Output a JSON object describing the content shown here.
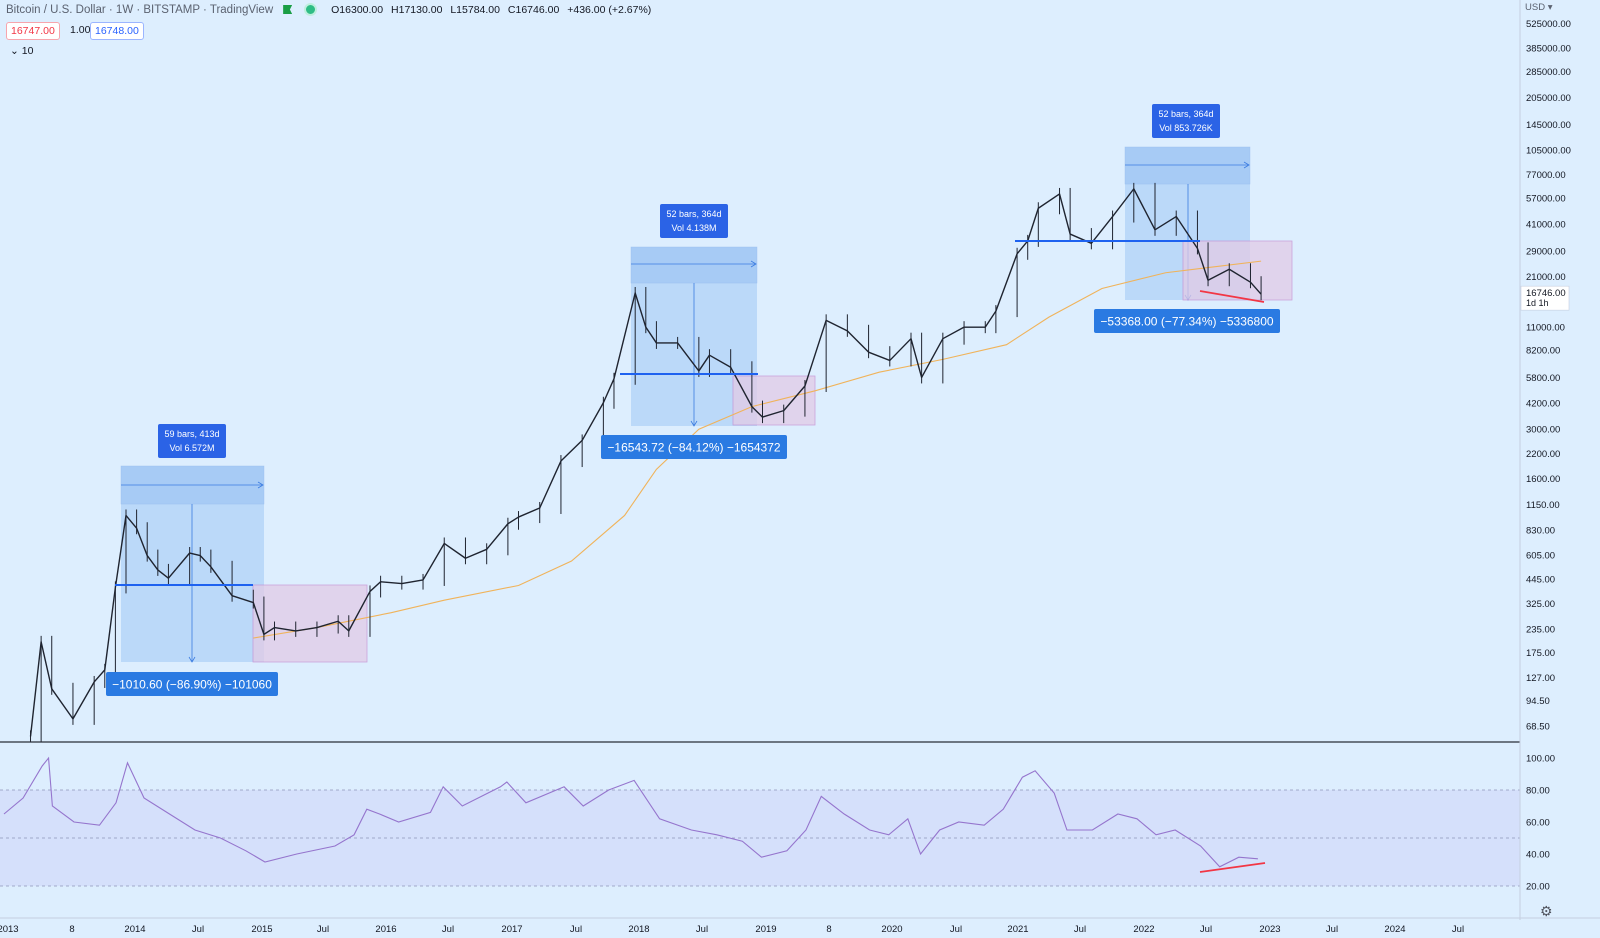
{
  "header": {
    "symbol": "Bitcoin / U.S. Dollar · 1W · BITSTAMP · TradingView",
    "open": "O16300.00",
    "high": "H17130.00",
    "low": "L15784.00",
    "close": "C16746.00",
    "change": "+436.00 (+2.67%)",
    "sell_price": "16747.00",
    "quantity": "1.00",
    "buy_price": "16748.00",
    "indicator_count": "10"
  },
  "price_axis": {
    "currency": "USD",
    "labels": [
      "525000.00",
      "385000.00",
      "285000.00",
      "205000.00",
      "145000.00",
      "105000.00",
      "77000.00",
      "57000.00",
      "41000.00",
      "29000.00",
      "21000.00",
      "16746.00",
      "11000.00",
      "8200.00",
      "5800.00",
      "4200.00",
      "3000.00",
      "2200.00",
      "1600.00",
      "1150.00",
      "830.00",
      "605.00",
      "445.00",
      "325.00",
      "235.00",
      "175.00",
      "127.00",
      "94.50",
      "68.50"
    ],
    "last_price": "16746.00",
    "countdown": "1d 1h"
  },
  "rsi_axis": {
    "labels": [
      "100.00",
      "80.00",
      "60.00",
      "40.00",
      "20.00"
    ]
  },
  "time_axis": {
    "labels": [
      "2013",
      "8",
      "2014",
      "Jul",
      "2015",
      "Jul",
      "2016",
      "Jul",
      "2017",
      "Jul",
      "2018",
      "Jul",
      "2019",
      "8",
      "2020",
      "Jul",
      "2021",
      "Jul",
      "2022",
      "Jul",
      "2023",
      "Jul",
      "2024",
      "Jul"
    ]
  },
  "measures": [
    {
      "bars": "59 bars, 413d",
      "vol": "Vol 6.572M",
      "result": "−1010.60 (−86.90%) −101060"
    },
    {
      "bars": "52 bars, 364d",
      "vol": "Vol 4.138M",
      "result": "−16543.72 (−84.12%) −1654372"
    },
    {
      "bars": "52 bars, 364d",
      "vol": "Vol 853.726K",
      "result": "−53368.00 (−77.34%) −5336800"
    }
  ],
  "colors": {
    "background": "#ddeefe",
    "measure_fill": "#9ec8f4",
    "box_fill": "#e2cbe6",
    "ma": "#f0b35a",
    "rsi": "#9575cd",
    "hline": "#1e62f0",
    "trend": "#f23645",
    "label": "#2a7ae2"
  },
  "chart_data": [
    {
      "type": "line",
      "scale": "log",
      "series": [
        {
          "name": "",
          "points": [
            [
              "2013-03",
              60
            ],
            [
              "2013-04",
              200
            ],
            [
              "2013-05",
              110
            ],
            [
              "2013-07",
              75
            ],
            [
              "2013-09",
              120
            ],
            [
              "2013-10",
              140
            ],
            [
              "2013-11",
              400
            ],
            [
              "2013-12",
              1000
            ],
            [
              "2014-01",
              850
            ],
            [
              "2014-02",
              600
            ],
            [
              "2014-03",
              500
            ],
            [
              "2014-04",
              450
            ],
            [
              "2014-06",
              620
            ],
            [
              "2014-07",
              600
            ],
            [
              "2014-08",
              520
            ],
            [
              "2014-10",
              360
            ],
            [
              "2014-12",
              330
            ],
            [
              "2015-01",
              220
            ],
            [
              "2015-02",
              240
            ],
            [
              "2015-04",
              230
            ],
            [
              "2015-06",
              240
            ],
            [
              "2015-08",
              260
            ],
            [
              "2015-09",
              230
            ],
            [
              "2015-11",
              380
            ],
            [
              "2015-12",
              430
            ],
            [
              "2016-02",
              420
            ],
            [
              "2016-04",
              440
            ],
            [
              "2016-06",
              700
            ],
            [
              "2016-08",
              580
            ],
            [
              "2016-10",
              650
            ],
            [
              "2016-12",
              900
            ],
            [
              "2017-01",
              980
            ],
            [
              "2017-03",
              1100
            ],
            [
              "2017-05",
              2000
            ],
            [
              "2017-07",
              2600
            ],
            [
              "2017-09",
              4200
            ],
            [
              "2017-10",
              5700
            ],
            [
              "2017-12",
              17000
            ],
            [
              "2018-01",
              11000
            ],
            [
              "2018-02",
              9000
            ],
            [
              "2018-04",
              9000
            ],
            [
              "2018-06",
              6300
            ],
            [
              "2018-07",
              7700
            ],
            [
              "2018-09",
              6600
            ],
            [
              "2018-11",
              4000
            ],
            [
              "2018-12",
              3500
            ],
            [
              "2019-02",
              3800
            ],
            [
              "2019-04",
              5200
            ],
            [
              "2019-06",
              12000
            ],
            [
              "2019-08",
              10500
            ],
            [
              "2019-10",
              8000
            ],
            [
              "2019-12",
              7200
            ],
            [
              "2020-02",
              9500
            ],
            [
              "2020-03",
              5800
            ],
            [
              "2020-05",
              9500
            ],
            [
              "2020-07",
              11000
            ],
            [
              "2020-09",
              11000
            ],
            [
              "2020-10",
              13500
            ],
            [
              "2020-12",
              28000
            ],
            [
              "2021-01",
              33000
            ],
            [
              "2021-02",
              50000
            ],
            [
              "2021-04",
              60000
            ],
            [
              "2021-05",
              36000
            ],
            [
              "2021-07",
              32000
            ],
            [
              "2021-09",
              45000
            ],
            [
              "2021-11",
              64000
            ],
            [
              "2022-01",
              38000
            ],
            [
              "2022-03",
              45000
            ],
            [
              "2022-05",
              30000
            ],
            [
              "2022-06",
              20000
            ],
            [
              "2022-08",
              23000
            ],
            [
              "2022-10",
              19500
            ],
            [
              "2022-11",
              16746
            ]
          ]
        },
        {
          "name": "",
          "points": [
            [
              "2014-12",
              210
            ],
            [
              "2015-06",
              240
            ],
            [
              "2016-01",
              290
            ],
            [
              "2016-06",
              340
            ],
            [
              "2017-01",
              410
            ],
            [
              "2017-06",
              560
            ],
            [
              "2017-11",
              1000
            ],
            [
              "2018-02",
              1800
            ],
            [
              "2018-06",
              3000
            ],
            [
              "2018-11",
              4000
            ],
            [
              "2019-05",
              4900
            ],
            [
              "2019-11",
              6200
            ],
            [
              "2020-05",
              7300
            ],
            [
              "2020-11",
              8800
            ],
            [
              "2021-03",
              12500
            ],
            [
              "2021-08",
              18000
            ],
            [
              "2022-02",
              22000
            ],
            [
              "2022-06",
              23500
            ],
            [
              "2022-11",
              25500
            ]
          ]
        }
      ]
    },
    {
      "type": "line",
      "ylim": [
        20,
        100
      ],
      "series": [
        {
          "name": "",
          "values": [
            [
              2013.0,
              65
            ],
            [
              2013.15,
              75
            ],
            [
              2013.3,
              95
            ],
            [
              2013.35,
              100
            ],
            [
              2013.38,
              70
            ],
            [
              2013.55,
              60
            ],
            [
              2013.75,
              58
            ],
            [
              2013.88,
              72
            ],
            [
              2013.97,
              97
            ],
            [
              2014.1,
              75
            ],
            [
              2014.3,
              65
            ],
            [
              2014.5,
              55
            ],
            [
              2014.7,
              50
            ],
            [
              2014.9,
              42
            ],
            [
              2015.05,
              35
            ],
            [
              2015.3,
              40
            ],
            [
              2015.6,
              45
            ],
            [
              2015.75,
              52
            ],
            [
              2015.85,
              68
            ],
            [
              2015.95,
              65
            ],
            [
              2016.1,
              60
            ],
            [
              2016.35,
              66
            ],
            [
              2016.45,
              82
            ],
            [
              2016.6,
              70
            ],
            [
              2016.9,
              82
            ],
            [
              2016.95,
              85
            ],
            [
              2017.1,
              72
            ],
            [
              2017.4,
              82
            ],
            [
              2017.55,
              70
            ],
            [
              2017.75,
              80
            ],
            [
              2017.95,
              86
            ],
            [
              2018.15,
              62
            ],
            [
              2018.4,
              55
            ],
            [
              2018.6,
              52
            ],
            [
              2018.8,
              48
            ],
            [
              2018.95,
              38
            ],
            [
              2019.15,
              42
            ],
            [
              2019.3,
              55
            ],
            [
              2019.42,
              76
            ],
            [
              2019.6,
              65
            ],
            [
              2019.8,
              55
            ],
            [
              2019.95,
              52
            ],
            [
              2020.1,
              62
            ],
            [
              2020.2,
              40
            ],
            [
              2020.35,
              55
            ],
            [
              2020.5,
              60
            ],
            [
              2020.7,
              58
            ],
            [
              2020.85,
              68
            ],
            [
              2021.0,
              88
            ],
            [
              2021.1,
              92
            ],
            [
              2021.25,
              78
            ],
            [
              2021.35,
              55
            ],
            [
              2021.55,
              55
            ],
            [
              2021.75,
              65
            ],
            [
              2021.9,
              62
            ],
            [
              2022.05,
              52
            ],
            [
              2022.2,
              55
            ],
            [
              2022.4,
              45
            ],
            [
              2022.55,
              32
            ],
            [
              2022.7,
              38
            ],
            [
              2022.85,
              37
            ]
          ]
        }
      ]
    }
  ]
}
